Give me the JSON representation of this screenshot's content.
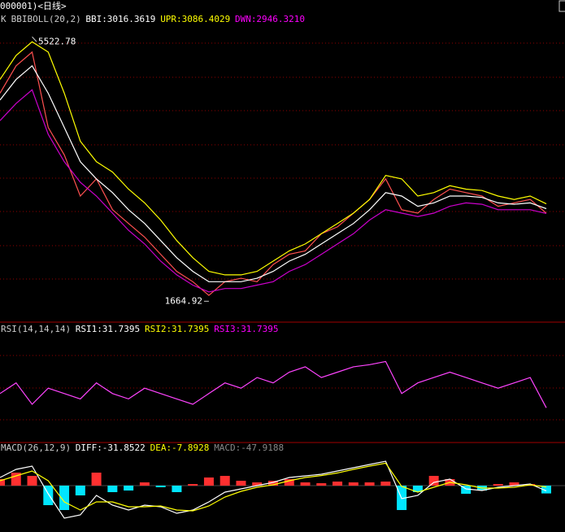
{
  "header": {
    "title": "000001)<日线>"
  },
  "chart_data": [
    {
      "type": "line",
      "title": "K",
      "indicator": "BBIBOLL(20,2)",
      "readouts": [
        {
          "name": "BBI:",
          "value": 3016.3619,
          "color": "#ffffff"
        },
        {
          "name": "UPR:",
          "value": 3086.4029,
          "color": "#ffff00"
        },
        {
          "name": "DWN:",
          "value": 2946.321,
          "value_label": "2946.3210",
          "color": "#ff00ff"
        }
      ],
      "high": 5522.78,
      "low": 1664.92,
      "ylim": [
        1360,
        5870
      ],
      "series": [
        {
          "color": "#ff5050",
          "values": [
            4700,
            5100,
            5300,
            4200,
            3800,
            3200,
            3450,
            3000,
            2800,
            2600,
            2350,
            2100,
            1950,
            1750,
            1950,
            2000,
            1950,
            2200,
            2350,
            2400,
            2650,
            2750,
            2950,
            3150,
            3450,
            3000,
            2950,
            3150,
            3300,
            3250,
            3200,
            3050,
            3100,
            3150,
            2950
          ]
        },
        {
          "color": "#ffffff",
          "values": [
            4600,
            4900,
            5100,
            4700,
            4200,
            3700,
            3450,
            3250,
            3000,
            2800,
            2550,
            2300,
            2100,
            1950,
            1950,
            1950,
            2000,
            2100,
            2250,
            2350,
            2500,
            2650,
            2800,
            3000,
            3250,
            3200,
            3050,
            3100,
            3200,
            3200,
            3180,
            3100,
            3080,
            3100,
            3016
          ]
        },
        {
          "color": "#ffff00",
          "values": [
            4900,
            5250,
            5450,
            5300,
            4700,
            4000,
            3700,
            3550,
            3300,
            3100,
            2850,
            2550,
            2300,
            2100,
            2050,
            2050,
            2100,
            2250,
            2400,
            2500,
            2650,
            2800,
            2950,
            3150,
            3500,
            3450,
            3200,
            3250,
            3350,
            3300,
            3280,
            3200,
            3150,
            3200,
            3086
          ]
        },
        {
          "color": "#cc00cc",
          "values": [
            4300,
            4550,
            4750,
            4100,
            3700,
            3400,
            3200,
            2950,
            2700,
            2500,
            2250,
            2050,
            1900,
            1800,
            1850,
            1850,
            1900,
            1950,
            2100,
            2200,
            2350,
            2500,
            2650,
            2850,
            3000,
            2950,
            2900,
            2950,
            3050,
            3100,
            3080,
            3000,
            3000,
            3000,
            2946
          ]
        }
      ]
    },
    {
      "type": "line",
      "title": "RSI(14,14,14)",
      "readouts": [
        {
          "name": "RSI1:",
          "value": 31.7395,
          "color": "#ffffff"
        },
        {
          "name": "RSI2:",
          "value": 31.7395,
          "color": "#ffff00"
        },
        {
          "name": "RSI3:",
          "value": 31.7395,
          "color": "#ff00ff"
        }
      ],
      "ylim": [
        0,
        111
      ],
      "series": [
        {
          "color": "#ff44ff",
          "values": [
            45,
            55,
            35,
            50,
            45,
            40,
            55,
            45,
            40,
            50,
            45,
            40,
            35,
            45,
            55,
            50,
            60,
            55,
            65,
            70,
            60,
            65,
            70,
            72,
            75,
            45,
            55,
            60,
            65,
            60,
            55,
            50,
            55,
            60,
            31.7395
          ]
        }
      ]
    },
    {
      "type": "macd",
      "title": "MACD(26,12,9)",
      "readouts": [
        {
          "name": "DIFF:",
          "value": -31.8522,
          "color": "#ffffff"
        },
        {
          "name": "DEA:",
          "value": -7.8928,
          "color": "#ffff00"
        },
        {
          "name": "MACD:",
          "value": -47.9188,
          "color": "#888888"
        }
      ],
      "ylim": [
        -285,
        260
      ],
      "histogram": {
        "up_color": "#ff3030",
        "down_color": "#00e5ff",
        "values": [
          40,
          80,
          60,
          -120,
          -150,
          -60,
          80,
          -40,
          -30,
          20,
          -10,
          -40,
          10,
          50,
          60,
          30,
          20,
          30,
          40,
          20,
          15,
          25,
          20,
          20,
          25,
          -150,
          -40,
          60,
          40,
          -50,
          -30,
          10,
          20,
          10,
          -47.9188
        ]
      },
      "series": [
        {
          "color": "#ffffff",
          "values": [
            50,
            100,
            120,
            -50,
            -200,
            -180,
            -60,
            -120,
            -150,
            -120,
            -130,
            -170,
            -150,
            -100,
            -40,
            -20,
            0,
            20,
            50,
            60,
            70,
            90,
            110,
            130,
            150,
            -80,
            -60,
            20,
            40,
            -20,
            -30,
            -10,
            0,
            10,
            -31.8522
          ]
        },
        {
          "color": "#ffff00",
          "values": [
            30,
            60,
            90,
            30,
            -100,
            -150,
            -100,
            -100,
            -130,
            -130,
            -125,
            -150,
            -155,
            -125,
            -70,
            -35,
            -10,
            5,
            30,
            50,
            62,
            78,
            100,
            120,
            138,
            -5,
            -40,
            -10,
            20,
            5,
            -15,
            -15,
            -10,
            5,
            -7.8928
          ]
        }
      ]
    }
  ]
}
